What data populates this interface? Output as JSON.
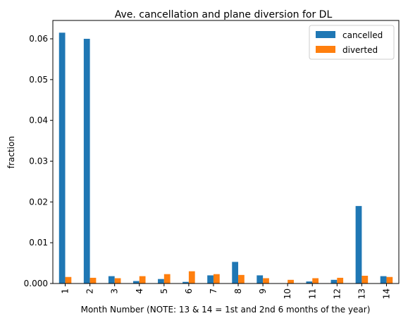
{
  "chart_data": {
    "type": "bar",
    "title": "Ave. cancellation and plane diversion for DL",
    "xlabel": "Month Number (NOTE: 13 & 14 = 1st and 2nd 6 months of the year)",
    "ylabel": "fraction",
    "categories": [
      "1",
      "2",
      "3",
      "4",
      "5",
      "6",
      "7",
      "8",
      "9",
      "10",
      "11",
      "12",
      "13",
      "14"
    ],
    "ylim": [
      0,
      0.0645
    ],
    "yticks": [
      "0.000",
      "0.01",
      "0.02",
      "0.03",
      "0.04",
      "0.05",
      "0.06"
    ],
    "legend_position": "top-right",
    "grid": false,
    "series": [
      {
        "name": "cancelled",
        "color": "#1f77b4",
        "values": [
          0.0615,
          0.06,
          0.0018,
          0.0006,
          0.0011,
          0.0004,
          0.002,
          0.0053,
          0.002,
          0.0,
          0.0005,
          0.0009,
          0.019,
          0.0018
        ]
      },
      {
        "name": "diverted",
        "color": "#ff7f0e",
        "values": [
          0.0016,
          0.0014,
          0.0013,
          0.0018,
          0.0023,
          0.003,
          0.0023,
          0.0021,
          0.0013,
          0.0009,
          0.0013,
          0.0014,
          0.0019,
          0.0016
        ]
      }
    ]
  }
}
